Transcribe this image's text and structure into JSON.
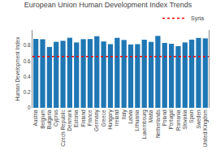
{
  "chart_data": {
    "type": "bar",
    "title": "European Union Human Development Index Trends",
    "ylabel": "Human Development Index",
    "categories": [
      "Austria",
      "Belgium",
      "Bulgaria",
      "Cyprus",
      "Czech Republic",
      "Denmark",
      "Estonia",
      "Finland",
      "France",
      "Germany",
      "Greece",
      "Hungary",
      "Ireland",
      "Italy",
      "Latvia",
      "Lithuania",
      "Luxembourg",
      "Malta",
      "Netherlands",
      "Poland",
      "Portugal",
      "Romania",
      "Slovakia",
      "Spain",
      "Sweden",
      "United Kingdom"
    ],
    "values": [
      0.885,
      0.881,
      0.782,
      0.848,
      0.861,
      0.9,
      0.84,
      0.882,
      0.884,
      0.92,
      0.853,
      0.818,
      0.899,
      0.872,
      0.814,
      0.818,
      0.875,
      0.847,
      0.924,
      0.834,
      0.822,
      0.793,
      0.84,
      0.876,
      0.898,
      0.892
    ],
    "reference_line": {
      "name": "Syria",
      "value": 0.66,
      "color": "red",
      "line_style": "dotted"
    },
    "ylim": [
      0,
      1.0
    ],
    "yticks": [
      0,
      0.2,
      0.4,
      0.6,
      0.8
    ],
    "grid": false,
    "legend": "upper right"
  }
}
